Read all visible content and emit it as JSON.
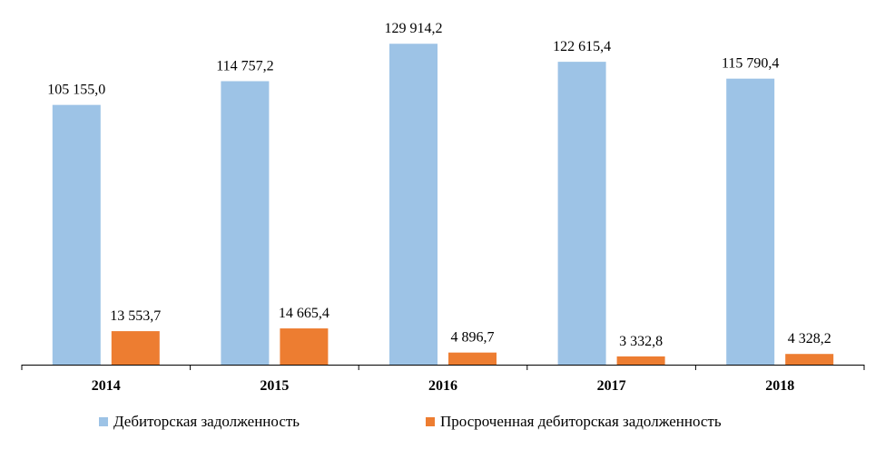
{
  "chart_data": {
    "type": "bar",
    "categories": [
      "2014",
      "2015",
      "2016",
      "2017",
      "2018"
    ],
    "series": [
      {
        "name": "Дебиторская задолженность",
        "color": "#9DC3E6",
        "values": [
          105155.0,
          114757.2,
          129914.2,
          122615.4,
          115790.4
        ],
        "labels": [
          "105 155,0",
          "114 757,2",
          "129 914,2",
          "122 615,4",
          "115 790,4"
        ]
      },
      {
        "name": "Просроченная дебиторская задолженность",
        "color": "#ED7D31",
        "values": [
          13553.7,
          14665.4,
          4896.7,
          3332.8,
          4328.2
        ],
        "labels": [
          "13 553,7",
          "14 665,4",
          "4 896,7",
          "3 332,8",
          "4 328,2"
        ]
      }
    ],
    "title": "",
    "xlabel": "",
    "ylabel": "",
    "ylim": [
      0,
      130000
    ],
    "grid": false,
    "legend_position": "bottom"
  }
}
